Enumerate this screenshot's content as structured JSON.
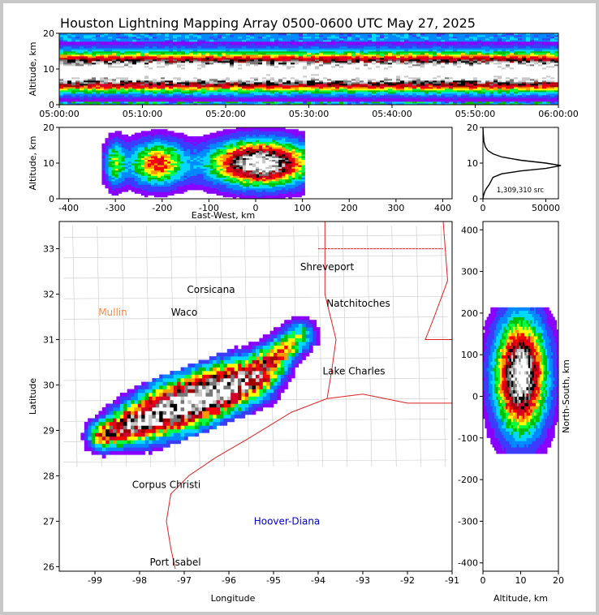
{
  "title": "Houston Lightning Mapping Array 0500-0600 UTC May 27, 2025",
  "colors": {
    "scale": [
      "#8a00ff",
      "#3c3cff",
      "#0088ff",
      "#00d8ff",
      "#00c000",
      "#00ff40",
      "#ffff00",
      "#ff9900",
      "#ff0000",
      "#d4002a",
      "#a00000",
      "#000000",
      "#777777",
      "#c8c8c8",
      "#ffffff"
    ],
    "state_lines": "#c8c8c8",
    "coast_and_border": "#dd2222"
  },
  "chart_data": [
    {
      "id": "time_height",
      "type": "heatmap",
      "ylabel": "Altitude, km",
      "xlabel": "",
      "x_ticks": [
        "05:00:00",
        "05:10:00",
        "05:20:00",
        "05:30:00",
        "05:40:00",
        "05:50:00",
        "06:00:00"
      ],
      "xlim": [
        "05:00:00",
        "06:00:00"
      ],
      "ylim": [
        0,
        20
      ],
      "y_ticks": [
        0,
        10,
        20
      ],
      "peak_altitude_km": 10,
      "description_source": "source density vs time and altitude"
    },
    {
      "id": "ew_height",
      "type": "heatmap",
      "xlabel": "East-West, km",
      "ylabel": "Altitude, km",
      "xlim": [
        -420,
        420
      ],
      "ylim": [
        0,
        20
      ],
      "x_ticks": [
        -400,
        -300,
        -200,
        -100,
        0,
        100,
        200,
        300,
        400
      ],
      "y_ticks": [
        0,
        10,
        20
      ],
      "core_x_km": [
        -150,
        90
      ],
      "core_altitude_km": 10
    },
    {
      "id": "altitude_histogram",
      "type": "line",
      "xlim": [
        0,
        60000
      ],
      "ylim": [
        0,
        20
      ],
      "x_ticks": [
        0,
        50000
      ],
      "y_ticks": [
        0,
        10,
        20
      ],
      "annotation": "1,309,310 src",
      "x": [
        0,
        500,
        1500,
        3000,
        5000,
        8000,
        15000,
        30000,
        50000,
        62000,
        50000,
        30000,
        15000,
        8000,
        4000,
        2000,
        800,
        300,
        0
      ],
      "y": [
        0,
        1,
        2,
        3,
        4,
        6,
        7,
        7.8,
        8.5,
        9.3,
        10.0,
        10.8,
        11.7,
        12.6,
        13.5,
        14.5,
        16,
        18,
        20
      ]
    },
    {
      "id": "plan_view",
      "type": "heatmap",
      "xlabel": "Longitude",
      "ylabel": "Latitude",
      "xlim": [
        -99.8,
        -91
      ],
      "ylim": [
        25.9,
        33.6
      ],
      "x_ticks": [
        -99,
        -98,
        -97,
        -96,
        -95,
        -94,
        -93,
        -92,
        -91
      ],
      "y_ticks": [
        26,
        27,
        28,
        29,
        30,
        31,
        32,
        33
      ],
      "storm_axis": [
        [
          -98.8,
          28.9
        ],
        [
          -95.4,
          30.2
        ],
        [
          -94.4,
          31.1
        ]
      ],
      "cities": [
        {
          "name": "Shreveport",
          "lon": -93.8,
          "lat": 32.6,
          "color": "#000000"
        },
        {
          "name": "Corsicana",
          "lon": -96.4,
          "lat": 32.1,
          "color": "#000000"
        },
        {
          "name": "Waco",
          "lon": -97.0,
          "lat": 31.6,
          "color": "#000000"
        },
        {
          "name": "Mullin",
          "lon": -98.6,
          "lat": 31.6,
          "color": "#ff8844"
        },
        {
          "name": "Natchitoches",
          "lon": -93.1,
          "lat": 31.8,
          "color": "#000000"
        },
        {
          "name": "Lake Charles",
          "lon": -93.2,
          "lat": 30.3,
          "color": "#000000"
        },
        {
          "name": "Corpus Christi",
          "lon": -97.4,
          "lat": 27.8,
          "color": "#000000"
        },
        {
          "name": "Hoover-Diana",
          "lon": -94.7,
          "lat": 27.0,
          "color": "#0000cc"
        },
        {
          "name": "Port Isabel",
          "lon": -97.2,
          "lat": 26.1,
          "color": "#000000"
        }
      ]
    },
    {
      "id": "ns_height",
      "type": "heatmap",
      "xlabel": "Altitude, km",
      "ylabel": "North-South, km",
      "xlim": [
        0,
        20
      ],
      "ylim": [
        -420,
        420
      ],
      "x_ticks": [
        0,
        10,
        20
      ],
      "y_ticks": [
        -400,
        -300,
        -200,
        -100,
        0,
        100,
        200,
        300,
        400
      ],
      "core_y_km": [
        -80,
        180
      ],
      "core_altitude_km": 10
    }
  ]
}
